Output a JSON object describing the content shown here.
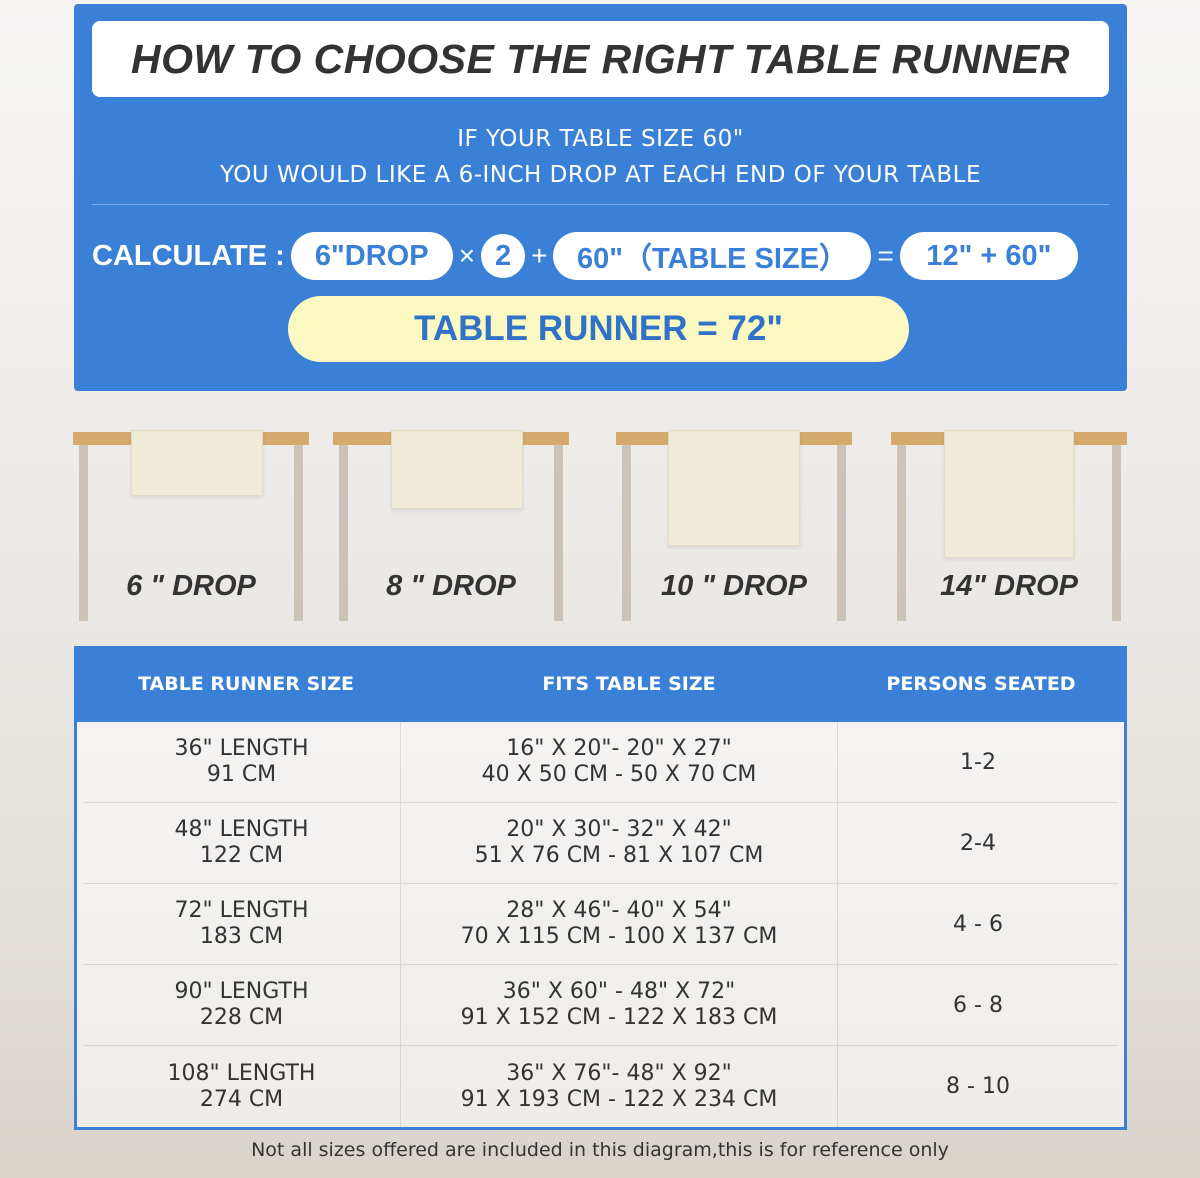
{
  "header": {
    "title": "HOW TO CHOOSE THE RIGHT TABLE RUNNER",
    "line1": "IF YOUR TABLE SIZE 60\"",
    "line2": "YOU WOULD LIKE A 6-INCH DROP AT EACH END OF YOUR TABLE"
  },
  "calc": {
    "label": "CALCULATE :",
    "drop": "6\"DROP",
    "times": "×",
    "mult": "2",
    "plus": "+",
    "table": "60\"（TABLE SIZE）",
    "eq": "=",
    "sum": "12\" + 60\"",
    "result": "TABLE RUNNER = 72\""
  },
  "drops": [
    {
      "label": "6 \" DROP"
    },
    {
      "label": "8 \" DROP"
    },
    {
      "label": "10 \" DROP"
    },
    {
      "label": "14\" DROP"
    }
  ],
  "table": {
    "headers": [
      "TABLE RUNNER SIZE",
      "FITS TABLE SIZE",
      "PERSONS SEATED"
    ],
    "rows": [
      {
        "size": "36\" LENGTH",
        "size_cm": "91 CM",
        "fits": "16\" X 20\"- 20\" X 27\"",
        "fits_cm": "40 X 50 CM - 50 X 70 CM",
        "persons": "1-2"
      },
      {
        "size": "48\" LENGTH",
        "size_cm": "122 CM",
        "fits": "20\" X 30\"- 32\" X 42\"",
        "fits_cm": "51 X 76 CM - 81 X 107 CM",
        "persons": "2-4"
      },
      {
        "size": "72\" LENGTH",
        "size_cm": "183 CM",
        "fits": "28\" X 46\"- 40\" X 54\"",
        "fits_cm": "70 X 115 CM - 100 X 137 CM",
        "persons": "4 - 6"
      },
      {
        "size": "90\" LENGTH",
        "size_cm": "228 CM",
        "fits": "36\" X 60\" - 48\" X 72\"",
        "fits_cm": "91 X 152 CM - 122 X 183 CM",
        "persons": "6 - 8"
      },
      {
        "size": "108\" LENGTH",
        "size_cm": "274 CM",
        "fits": "36\" X 76\"- 48\" X 92\"",
        "fits_cm": "91 X 193 CM - 122 X 234 CM",
        "persons": "8 - 10"
      }
    ]
  },
  "footer": "Not all sizes offered are included in this diagram,this is for reference only",
  "colors": {
    "blue": "#3a80d6",
    "yellow": "#fcf8c2",
    "wood": "#d6aa6c"
  }
}
